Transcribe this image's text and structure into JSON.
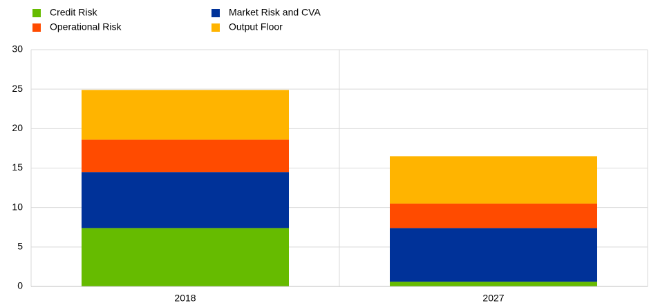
{
  "chart_data": {
    "type": "stacked_bar",
    "categories": [
      "2018",
      "2027"
    ],
    "series": [
      {
        "name": "Credit Risk",
        "color": "#66bb00",
        "values": [
          7.4,
          0.6
        ]
      },
      {
        "name": "Market Risk and CVA",
        "color": "#003299",
        "values": [
          7.1,
          6.8
        ]
      },
      {
        "name": "Operational Risk",
        "color": "#ff4b00",
        "values": [
          4.1,
          3.1
        ]
      },
      {
        "name": "Output Floor",
        "color": "#ffb400",
        "values": [
          6.3,
          6.0
        ]
      }
    ],
    "ylim": [
      0,
      30
    ],
    "yticks": [
      0,
      5,
      10,
      15,
      20,
      25,
      30
    ],
    "grid": true
  }
}
